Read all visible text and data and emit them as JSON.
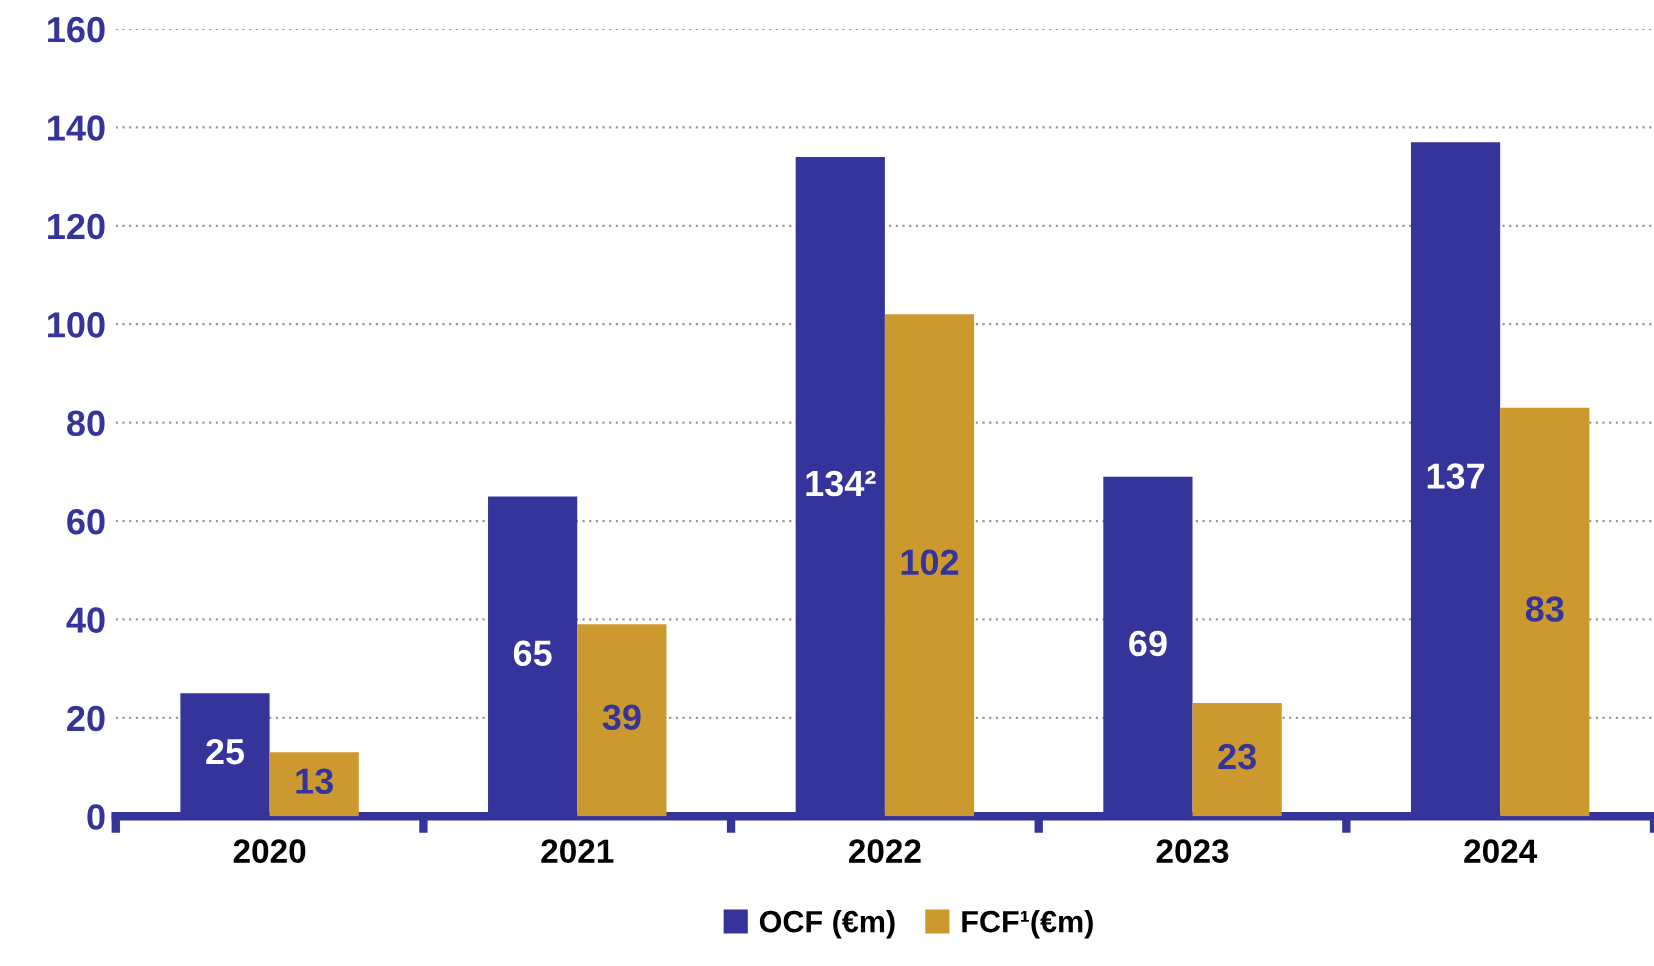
{
  "chart_data": {
    "type": "bar",
    "categories": [
      "2020",
      "2021",
      "2022",
      "2023",
      "2024"
    ],
    "series": [
      {
        "name": "OCF (€m)",
        "color": "#35349a",
        "values": [
          25,
          65,
          134,
          69,
          137
        ],
        "value_labels": [
          "25",
          "65",
          "134²",
          "69",
          "137"
        ]
      },
      {
        "name": "FCF¹(€m)",
        "color": "#cc992f",
        "values": [
          13,
          39,
          102,
          23,
          83
        ],
        "value_labels": [
          "13",
          "39",
          "102",
          "23",
          "83"
        ]
      }
    ],
    "ylim": [
      0,
      160
    ],
    "yticks": [
      0,
      20,
      40,
      60,
      80,
      100,
      120,
      140,
      160
    ],
    "grid": "y",
    "legend": "bottom"
  }
}
